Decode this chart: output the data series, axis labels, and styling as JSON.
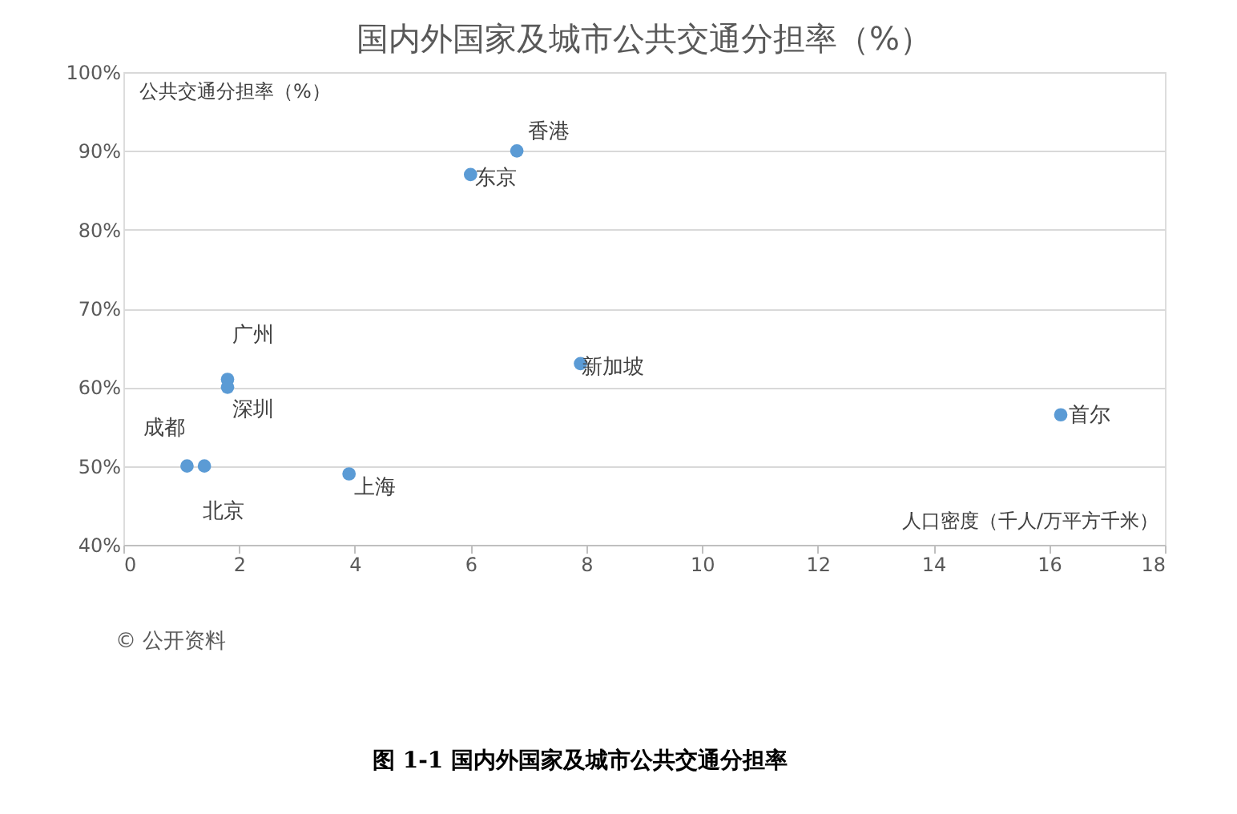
{
  "chart_data": {
    "type": "scatter",
    "title": "国内外国家及城市公共交通分担率（%）",
    "xlabel": "人口密度（千人/万平方千米）",
    "ylabel": "公共交通分担率（%）",
    "x": [
      6.8,
      6.0,
      7.9,
      16.2,
      1.8,
      1.8,
      1.1,
      1.4,
      3.9
    ],
    "series": [
      {
        "color": "#5b9bd5",
        "values": [
          90,
          87,
          63,
          56.5,
          61,
          60,
          50,
          50,
          49
        ]
      }
    ],
    "xlim": [
      0,
      18
    ],
    "xticks": [
      0,
      2,
      4,
      6,
      8,
      10,
      12,
      14,
      16,
      18
    ],
    "ylim": [
      40,
      100
    ],
    "yticks": [
      {
        "value": 40,
        "label": "40%"
      },
      {
        "value": 50,
        "label": "50%"
      },
      {
        "value": 60,
        "label": "60%"
      },
      {
        "value": 70,
        "label": "70%"
      },
      {
        "value": 80,
        "label": "80%"
      },
      {
        "value": 90,
        "label": "90%"
      },
      {
        "value": 100,
        "label": "100%"
      }
    ],
    "grid": "y",
    "marker": "circle",
    "annotations": [
      {
        "text": "香港",
        "x": 6.8,
        "y": 90
      },
      {
        "text": "东京",
        "x": 6.0,
        "y": 87
      },
      {
        "text": "新加坡",
        "x": 7.9,
        "y": 63
      },
      {
        "text": "首尔",
        "x": 16.2,
        "y": 56.5
      },
      {
        "text": "广州",
        "x": 1.8,
        "y": 61
      },
      {
        "text": "深圳",
        "x": 1.8,
        "y": 60
      },
      {
        "text": "成都",
        "x": 1.1,
        "y": 50
      },
      {
        "text": "北京",
        "x": 1.4,
        "y": 50
      },
      {
        "text": "上海",
        "x": 3.9,
        "y": 49
      },
      "© 公开资料",
      "图 1-1  国内外国家及城市公共交通分担率"
    ]
  }
}
